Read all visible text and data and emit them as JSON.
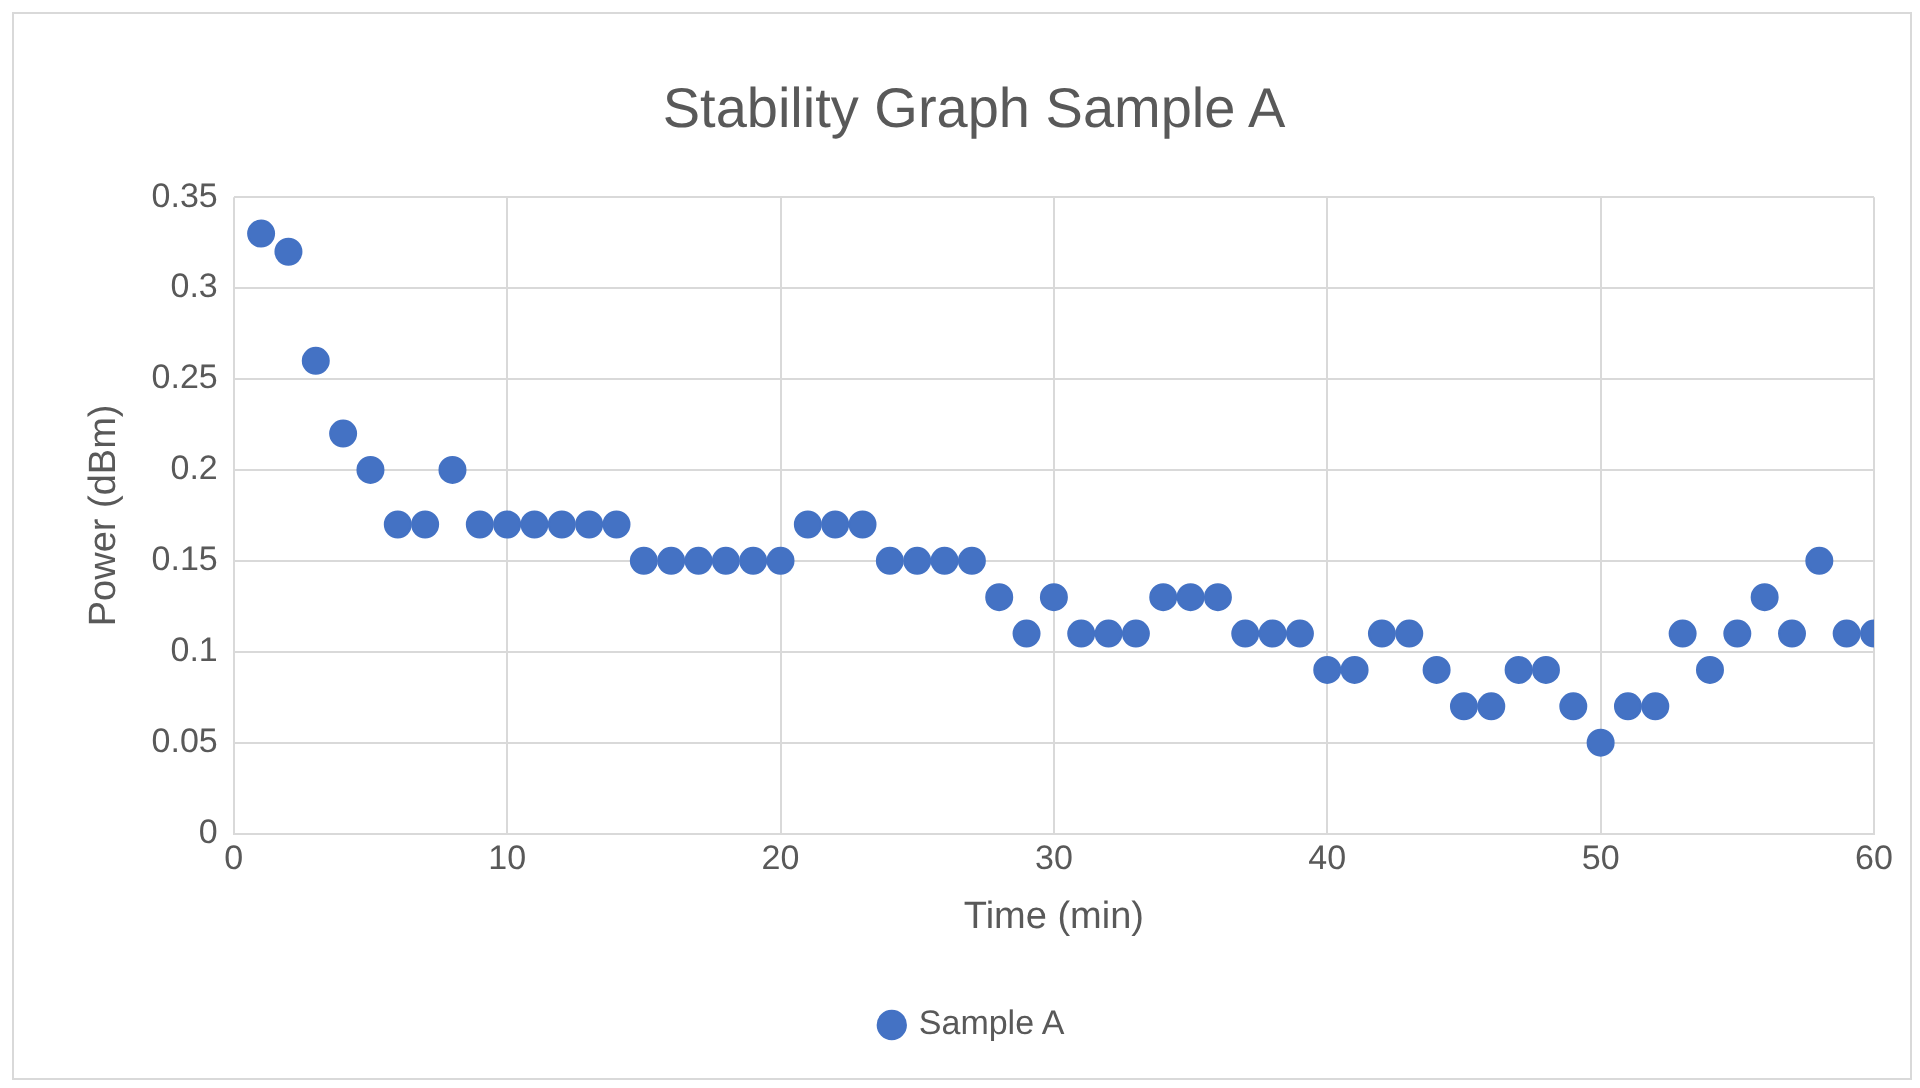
{
  "chart_data": {
    "type": "scatter",
    "title": "Stability Graph Sample A",
    "xlabel": "Time (min)",
    "ylabel": "Power (dBm)",
    "x": [
      1,
      2,
      3,
      4,
      5,
      6,
      7,
      8,
      9,
      10,
      11,
      12,
      13,
      14,
      15,
      16,
      17,
      18,
      19,
      20,
      21,
      22,
      23,
      24,
      25,
      26,
      27,
      28,
      29,
      30,
      31,
      32,
      33,
      34,
      35,
      36,
      37,
      38,
      39,
      40,
      41,
      42,
      43,
      44,
      45,
      46,
      47,
      48,
      49,
      50,
      51,
      52,
      53,
      54,
      55,
      56,
      57,
      58,
      59,
      60
    ],
    "series": [
      {
        "name": "Sample A",
        "color": "#4472c4",
        "values": [
          0.33,
          0.32,
          0.26,
          0.22,
          0.2,
          0.17,
          0.17,
          0.2,
          0.17,
          0.17,
          0.17,
          0.17,
          0.17,
          0.17,
          0.15,
          0.15,
          0.15,
          0.15,
          0.15,
          0.15,
          0.17,
          0.17,
          0.17,
          0.15,
          0.15,
          0.15,
          0.15,
          0.13,
          0.11,
          0.13,
          0.11,
          0.11,
          0.11,
          0.13,
          0.13,
          0.13,
          0.11,
          0.11,
          0.11,
          0.09,
          0.09,
          0.11,
          0.11,
          0.09,
          0.07,
          0.07,
          0.09,
          0.09,
          0.07,
          0.05,
          0.07,
          0.07,
          0.11,
          0.09,
          0.11,
          0.13,
          0.11,
          0.15,
          0.11,
          0.11
        ]
      }
    ],
    "xlim": [
      0,
      60
    ],
    "xticks": [
      0,
      10,
      20,
      30,
      40,
      50,
      60
    ],
    "ylim": [
      0,
      0.35
    ],
    "yticks": [
      0,
      0.05,
      0.1,
      0.15,
      0.2,
      0.25,
      0.3,
      0.35
    ],
    "grid": true,
    "legend": "bottom",
    "marker": "circle"
  }
}
